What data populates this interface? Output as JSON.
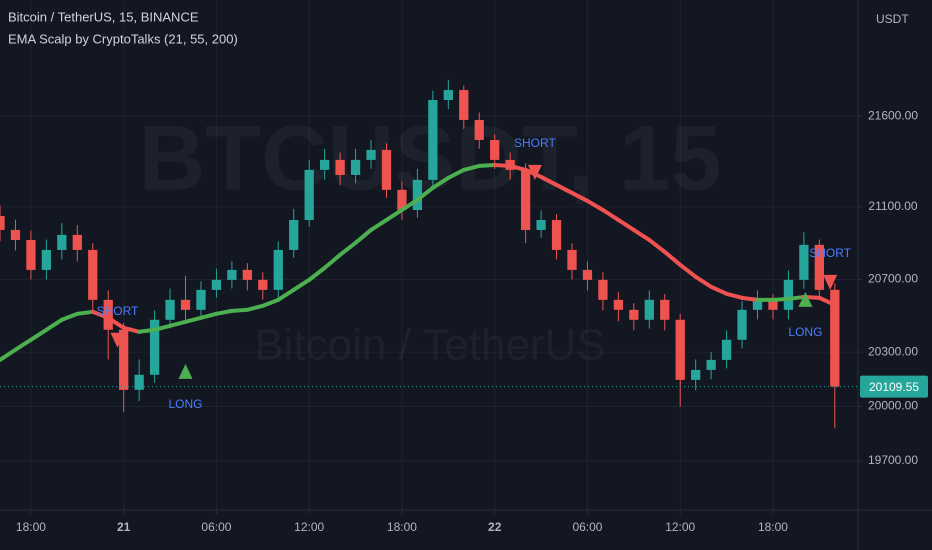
{
  "chart_data": {
    "type": "candlestick",
    "title": "Bitcoin / TetherUS, 15, BINANCE",
    "subtitle": "EMA Scalp by CryptoTalks (21, 55, 200)",
    "axis_label": "USDT",
    "watermark": "BTCUSDT, 15",
    "watermark_sub": "Bitcoin / TetherUS",
    "up_color": "#26a69a",
    "down_color": "#ef5350",
    "x": [
      0,
      1,
      2,
      3,
      4,
      5,
      6,
      7,
      8,
      9,
      10,
      11,
      12,
      13,
      14,
      15,
      16,
      17,
      18,
      19,
      20,
      21,
      22,
      23,
      24,
      25,
      26,
      27,
      28,
      29,
      30,
      31,
      32,
      33,
      34,
      35,
      36,
      37,
      38,
      39,
      40,
      41,
      42,
      43,
      44,
      45,
      46,
      47,
      48,
      49,
      50,
      51,
      52,
      53,
      54
    ],
    "open": [
      21050,
      20973,
      20918,
      20753,
      20863,
      20946,
      20863,
      20588,
      20423,
      20092,
      20175,
      20478,
      20588,
      20533,
      20643,
      20698,
      20753,
      20698,
      20643,
      20863,
      21028,
      21304,
      21359,
      21276,
      21359,
      21414,
      21194,
      21083,
      21249,
      21689,
      21744,
      21579,
      21469,
      21359,
      21304,
      20973,
      21028,
      20863,
      20753,
      20698,
      20588,
      20533,
      20478,
      20588,
      20478,
      20147,
      20202,
      20257,
      20368,
      20533,
      20588,
      20533,
      20698,
      20891,
      20643
    ],
    "high": [
      21110,
      21030,
      20970,
      20920,
      21010,
      21000,
      20900,
      20640,
      20460,
      20260,
      20530,
      20650,
      20720,
      20690,
      20760,
      20800,
      20790,
      20740,
      20910,
      21090,
      21360,
      21420,
      21400,
      21420,
      21470,
      21450,
      21240,
      21310,
      21740,
      21800,
      21770,
      21620,
      21500,
      21400,
      21340,
      21080,
      21060,
      20900,
      20800,
      20740,
      20630,
      20570,
      20640,
      20620,
      20510,
      20260,
      20300,
      20420,
      20580,
      20640,
      20620,
      20750,
      20960,
      20920,
      20680
    ],
    "low": [
      20910,
      20860,
      20700,
      20700,
      20810,
      20800,
      20530,
      20260,
      19970,
      20030,
      20130,
      20430,
      20480,
      20490,
      20600,
      20650,
      20640,
      20590,
      20600,
      20820,
      20990,
      21250,
      21220,
      21230,
      21310,
      21150,
      21030,
      21040,
      21200,
      21640,
      21530,
      21420,
      21310,
      21250,
      20900,
      20930,
      20810,
      20700,
      20640,
      20530,
      20470,
      20420,
      20430,
      20420,
      20000,
      20090,
      20150,
      20210,
      20320,
      20480,
      20480,
      20480,
      20650,
      20590,
      19880
    ],
    "close": [
      20973,
      20918,
      20753,
      20863,
      20946,
      20863,
      20588,
      20423,
      20092,
      20175,
      20478,
      20588,
      20533,
      20643,
      20698,
      20753,
      20698,
      20643,
      20863,
      21028,
      21304,
      21359,
      21276,
      21359,
      21414,
      21194,
      21083,
      21249,
      21689,
      21744,
      21579,
      21469,
      21359,
      21304,
      20973,
      21028,
      20863,
      20753,
      20698,
      20588,
      20533,
      20478,
      20588,
      20478,
      20147,
      20202,
      20257,
      20368,
      20533,
      20588,
      20533,
      20698,
      20891,
      20643,
      20109.55
    ],
    "ema": {
      "up_color": "#4caf50",
      "down_color": "#f05252",
      "values": [
        20257,
        20313,
        20368,
        20423,
        20478,
        20511,
        20522,
        20489,
        20434,
        20412,
        20423,
        20445,
        20467,
        20489,
        20511,
        20527,
        20533,
        20555,
        20588,
        20643,
        20698,
        20764,
        20836,
        20902,
        20973,
        21028,
        21083,
        21139,
        21205,
        21260,
        21304,
        21326,
        21331,
        21326,
        21304,
        21265,
        21221,
        21177,
        21133,
        21083,
        21028,
        20973,
        20918,
        20852,
        20781,
        20715,
        20660,
        20621,
        20599,
        20588,
        20588,
        20593,
        20604,
        20599,
        20560
      ]
    },
    "signals": [
      {
        "label": "SHORT",
        "x": 7.6,
        "y": 20368
      },
      {
        "label": "LONG",
        "x": 12,
        "y": 20191
      },
      {
        "label": "SHORT",
        "x": 34.6,
        "y": 21293
      },
      {
        "label": "LONG",
        "x": 52.1,
        "y": 20588
      },
      {
        "label": "SHORT",
        "x": 53.7,
        "y": 20687
      }
    ],
    "xlim": [
      0,
      55.5
    ],
    "xticks": [
      {
        "value": 2,
        "label": "18:00"
      },
      {
        "value": 8,
        "label": "21"
      },
      {
        "value": 14,
        "label": "06:00"
      },
      {
        "value": 20,
        "label": "12:00"
      },
      {
        "value": 26,
        "label": "18:00"
      },
      {
        "value": 32,
        "label": "22"
      },
      {
        "value": 38,
        "label": "06:00"
      },
      {
        "value": 44,
        "label": "12:00"
      },
      {
        "value": 50,
        "label": "18:00"
      }
    ],
    "ylim": [
      19430,
      22240
    ],
    "yticks": [
      {
        "value": 21600,
        "label": "21600.00"
      },
      {
        "value": 21100,
        "label": "21100.00"
      },
      {
        "value": 20700,
        "label": "20700.00"
      },
      {
        "value": 20300,
        "label": "20300.00"
      },
      {
        "value": 20000,
        "label": "20000.00"
      },
      {
        "value": 19700,
        "label": "19700.00"
      }
    ],
    "grid": true
  }
}
